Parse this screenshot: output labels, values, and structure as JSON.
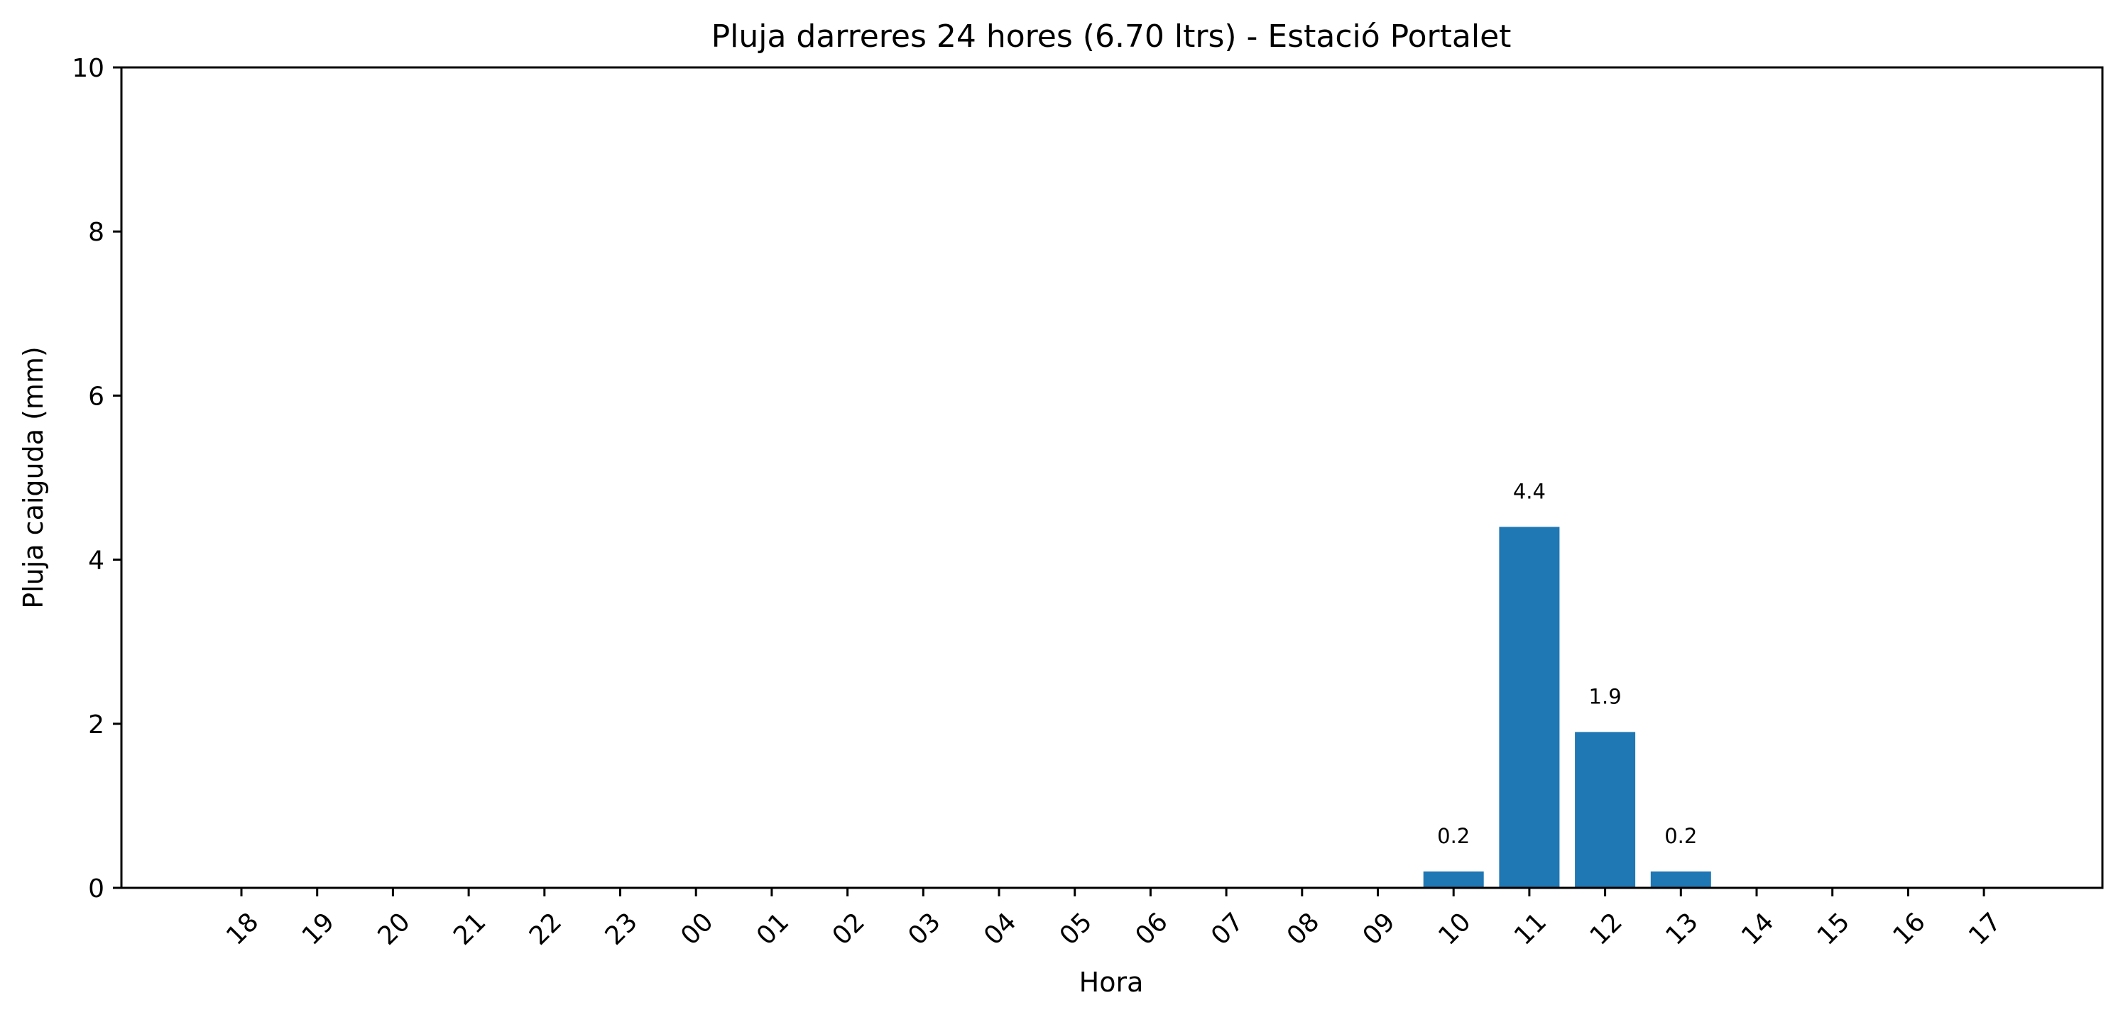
{
  "chart_data": {
    "type": "bar",
    "title": "Pluja darreres 24 hores (6.70 ltrs) - Estació Portalet",
    "xlabel": "Hora",
    "ylabel": "Pluja caiguda (mm)",
    "ylim": [
      0,
      10
    ],
    "yticks": [
      0,
      2,
      4,
      6,
      8,
      10
    ],
    "grid": false,
    "bar_color": "#1f77b4",
    "categories": [
      "18",
      "19",
      "20",
      "21",
      "22",
      "23",
      "00",
      "01",
      "02",
      "03",
      "04",
      "05",
      "06",
      "07",
      "08",
      "09",
      "10",
      "11",
      "12",
      "13",
      "14",
      "15",
      "16",
      "17"
    ],
    "values": [
      0,
      0,
      0,
      0,
      0,
      0,
      0,
      0,
      0,
      0,
      0,
      0,
      0,
      0,
      0,
      0,
      0.2,
      4.4,
      1.9,
      0.2,
      0,
      0,
      0,
      0
    ],
    "data_labels": [
      "",
      "",
      "",
      "",
      "",
      "",
      "",
      "",
      "",
      "",
      "",
      "",
      "",
      "",
      "",
      "",
      "0.2",
      "4.4",
      "1.9",
      "0.2",
      "",
      "",
      "",
      ""
    ]
  }
}
